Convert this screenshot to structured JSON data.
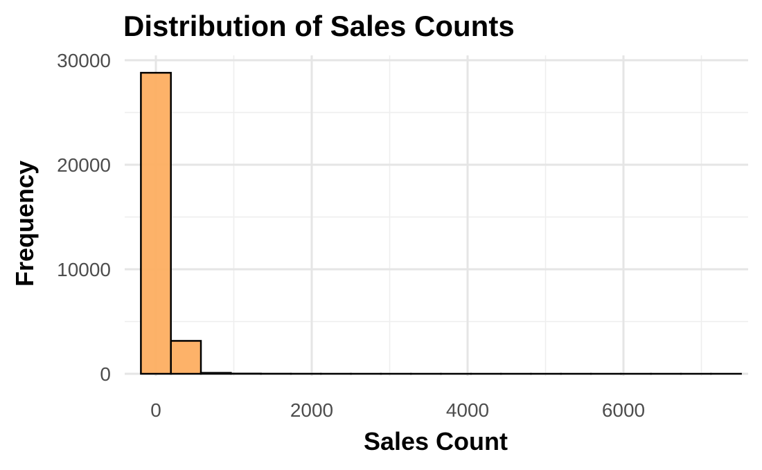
{
  "chart_data": {
    "type": "bar",
    "title": "Distribution of Sales Counts",
    "xlabel": "Sales Count",
    "ylabel": "Frequency",
    "xlim": [
      -400,
      7600
    ],
    "ylim": [
      0,
      30000
    ],
    "x_ticks": [
      0,
      2000,
      4000,
      6000
    ],
    "y_ticks": [
      0,
      10000,
      20000,
      30000
    ],
    "bin_width": 385,
    "bins": [
      {
        "start": -192,
        "end": 193,
        "count": 28800
      },
      {
        "start": 193,
        "end": 578,
        "count": 3150
      },
      {
        "start": 578,
        "end": 963,
        "count": 90
      },
      {
        "start": 963,
        "end": 1348,
        "count": 20
      },
      {
        "start": 1348,
        "end": 1733,
        "count": 8
      },
      {
        "start": 1733,
        "end": 2118,
        "count": 4
      },
      {
        "start": 2118,
        "end": 2503,
        "count": 2
      },
      {
        "start": 2503,
        "end": 2888,
        "count": 1
      },
      {
        "start": 2888,
        "end": 3273,
        "count": 1
      },
      {
        "start": 3273,
        "end": 3658,
        "count": 0
      },
      {
        "start": 3658,
        "end": 4043,
        "count": 0
      },
      {
        "start": 4043,
        "end": 4428,
        "count": 0
      },
      {
        "start": 4428,
        "end": 4813,
        "count": 0
      },
      {
        "start": 4813,
        "end": 5198,
        "count": 0
      },
      {
        "start": 5198,
        "end": 5583,
        "count": 0
      },
      {
        "start": 5583,
        "end": 5968,
        "count": 0
      },
      {
        "start": 5968,
        "end": 6353,
        "count": 0
      },
      {
        "start": 6353,
        "end": 6738,
        "count": 0
      },
      {
        "start": 6738,
        "end": 7123,
        "count": 0
      },
      {
        "start": 7123,
        "end": 7508,
        "count": 1
      }
    ],
    "grid": true,
    "legend": "none",
    "colors": {
      "fill": "#fdae61",
      "stroke": "#000000"
    }
  }
}
